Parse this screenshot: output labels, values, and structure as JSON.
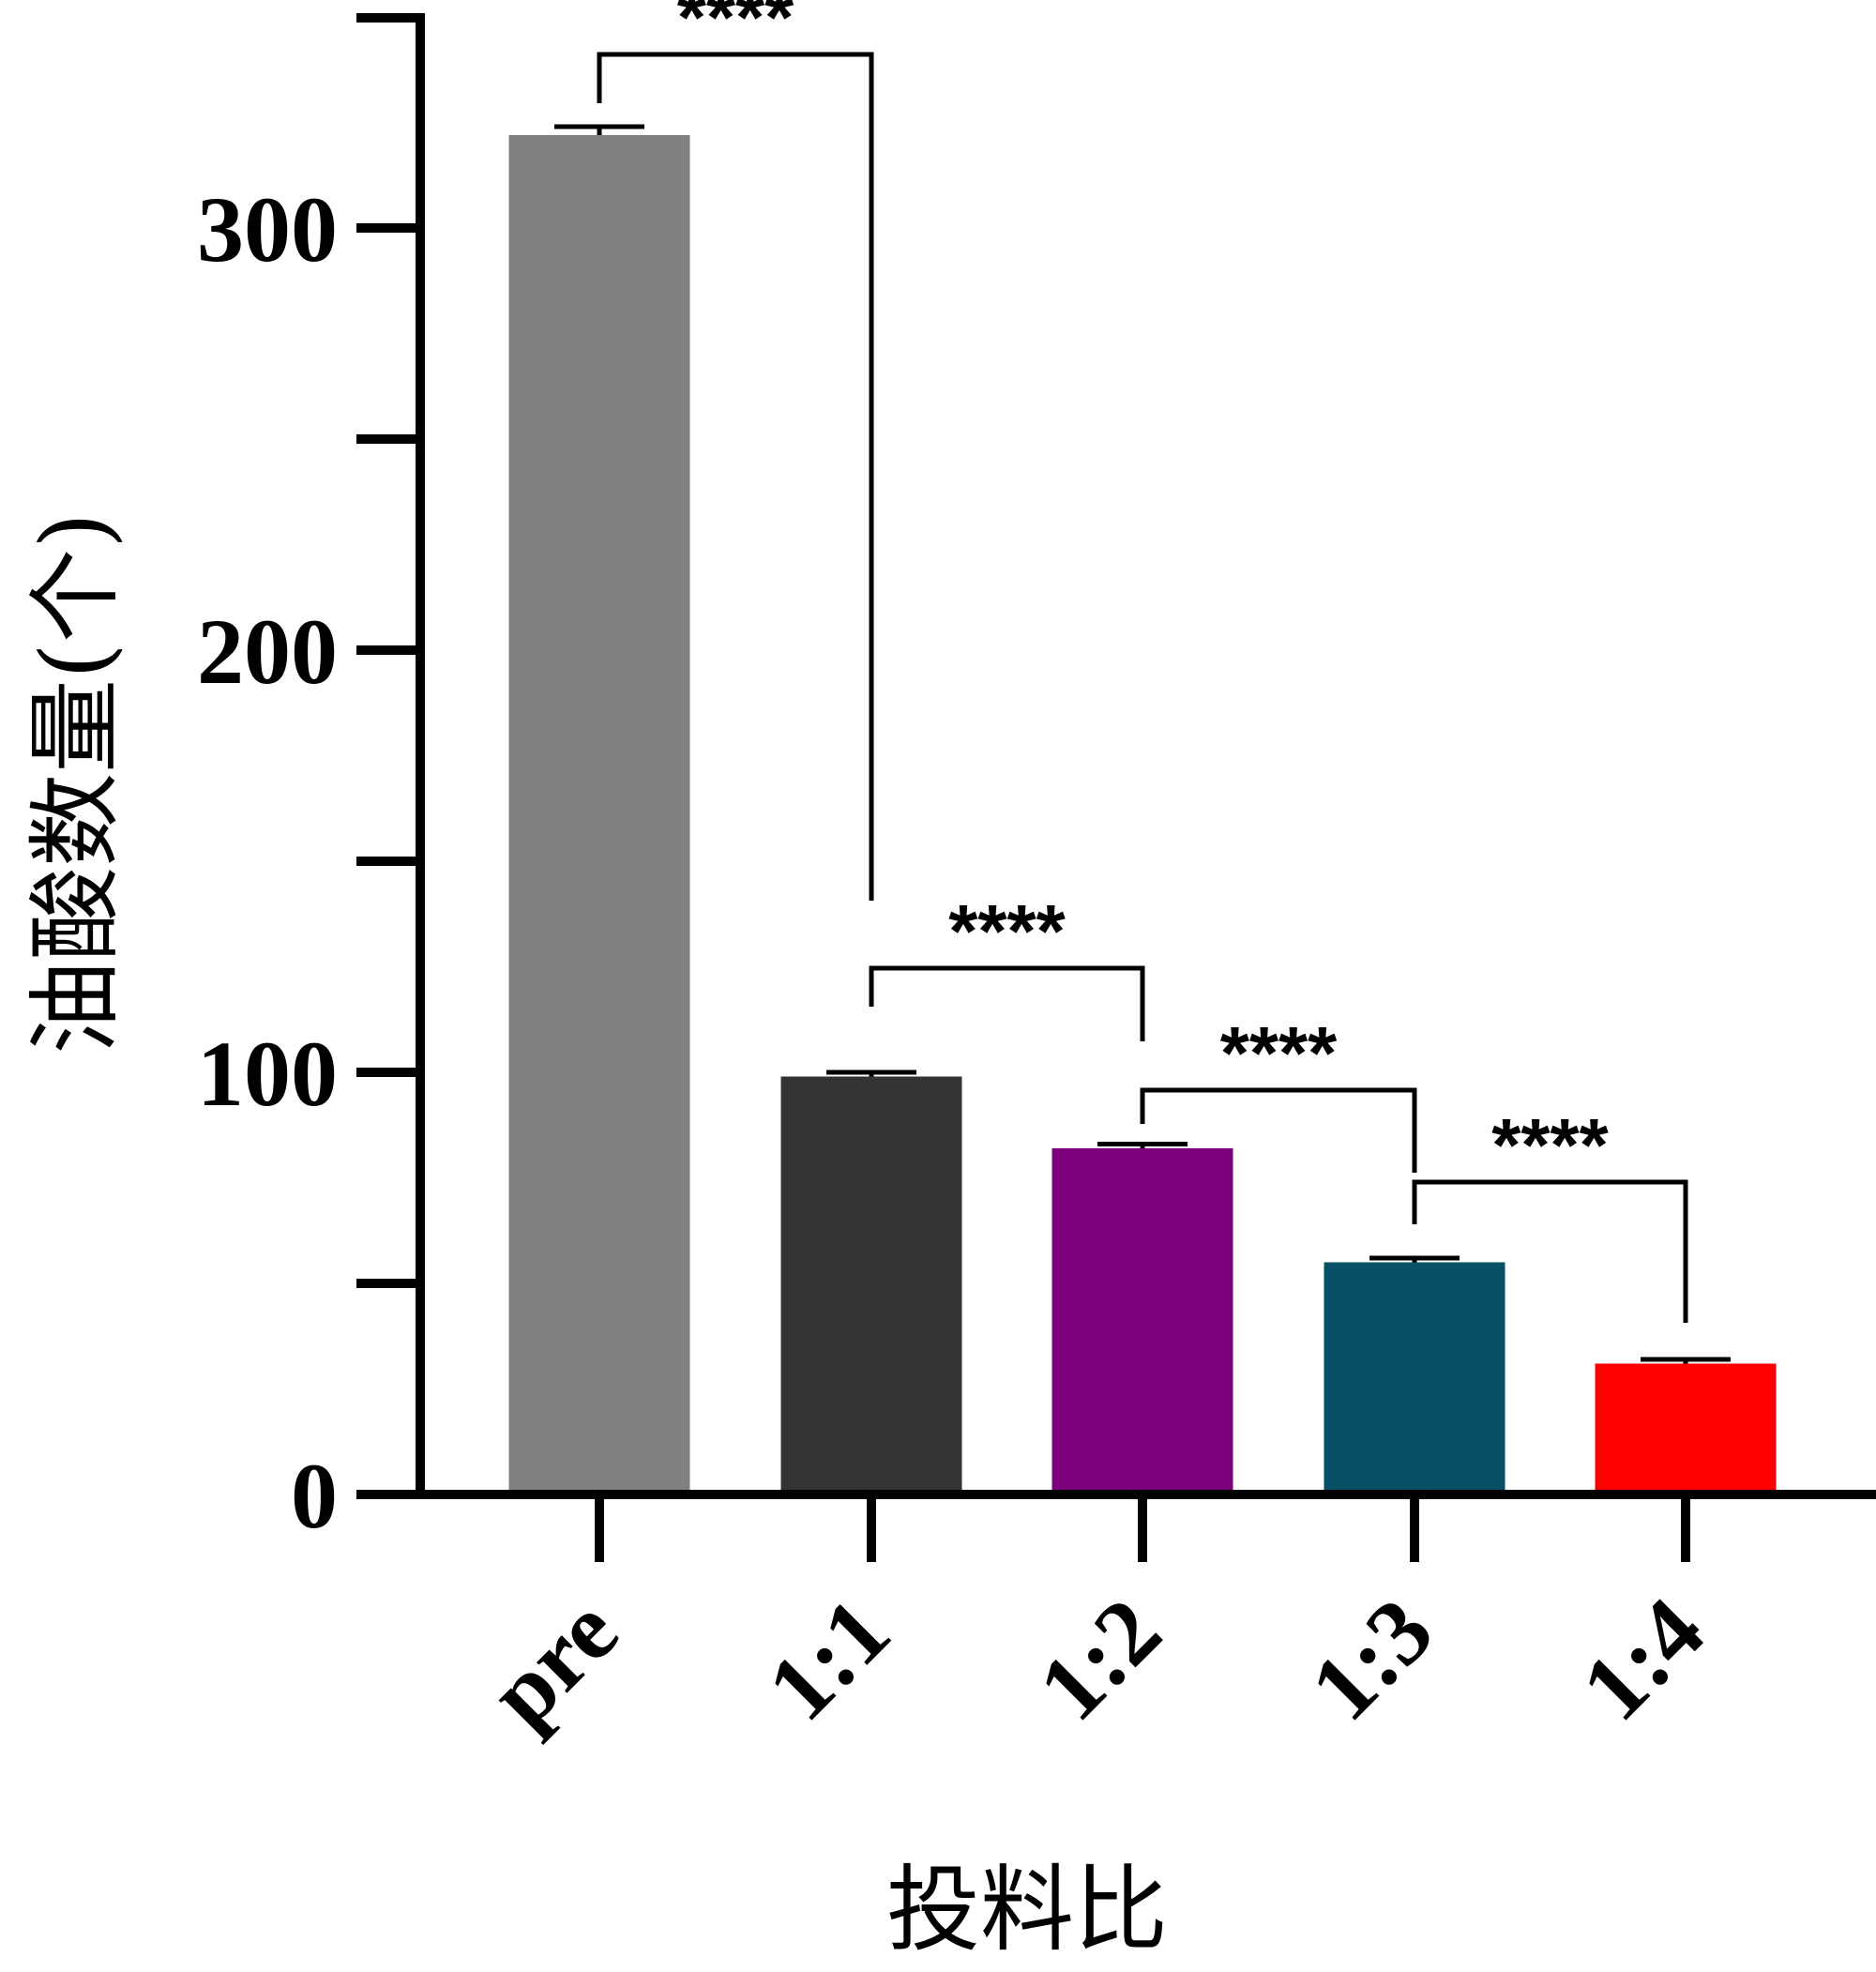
{
  "chart_data": {
    "type": "bar",
    "title": "",
    "xlabel": "投料比",
    "ylabel": "油酸数量(个)",
    "categories": [
      "pre",
      "1:1",
      "1:2",
      "1:3",
      "1:4"
    ],
    "values": [
      322,
      99,
      82,
      55,
      31
    ],
    "errors": [
      2,
      1,
      1,
      1,
      1
    ],
    "colors": [
      "#808080",
      "#333333",
      "#7b007b",
      "#075065",
      "#ff0000"
    ],
    "ylim": [
      0,
      350
    ],
    "yticks": [
      0,
      100,
      200,
      300
    ],
    "yticks_labeled": [
      "0",
      "100",
      "200",
      "300"
    ],
    "yticks_minor": [
      50,
      150,
      250,
      350
    ],
    "grid": false,
    "legend": false,
    "significance": [
      {
        "from": 0,
        "to": 1,
        "label": "****"
      },
      {
        "from": 1,
        "to": 2,
        "label": "****"
      },
      {
        "from": 2,
        "to": 3,
        "label": "****"
      },
      {
        "from": 3,
        "to": 4,
        "label": "****"
      }
    ]
  }
}
